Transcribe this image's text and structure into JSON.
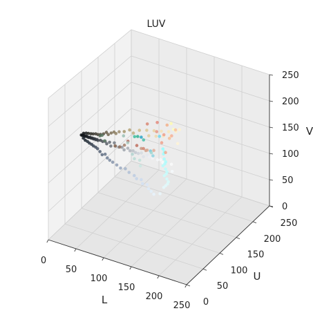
{
  "chart_data": {
    "type": "scatter",
    "title": "LUV",
    "xlabel": "L",
    "ylabel": "U",
    "zlabel": "V",
    "xlim": [
      0,
      250
    ],
    "ylim": [
      0,
      250
    ],
    "zlim": [
      0,
      250
    ],
    "x_ticks": [
      "0",
      "50",
      "100",
      "150",
      "200",
      "250"
    ],
    "y_ticks": [
      "0",
      "50",
      "100",
      "150",
      "200",
      "250"
    ],
    "z_ticks": [
      "0",
      "50",
      "100",
      "150",
      "200",
      "250"
    ],
    "grid": true,
    "point_color_meaning": "RGB color of each pixel",
    "points": [
      {
        "x": 2,
        "y": 96,
        "z": 136,
        "color": "#0b0f12"
      },
      {
        "x": 4,
        "y": 96,
        "z": 136,
        "color": "#0d1114"
      },
      {
        "x": 6,
        "y": 96,
        "z": 137,
        "color": "#10141a"
      },
      {
        "x": 8,
        "y": 96,
        "z": 136,
        "color": "#13171c"
      },
      {
        "x": 10,
        "y": 96,
        "z": 136,
        "color": "#161a20"
      },
      {
        "x": 12,
        "y": 96,
        "z": 137,
        "color": "#191d22"
      },
      {
        "x": 14,
        "y": 96,
        "z": 136,
        "color": "#1c2026"
      },
      {
        "x": 16,
        "y": 96,
        "z": 136,
        "color": "#1f242a"
      },
      {
        "x": 18,
        "y": 96,
        "z": 137,
        "color": "#22272e"
      },
      {
        "x": 20,
        "y": 96,
        "z": 136,
        "color": "#262b32"
      },
      {
        "x": 22,
        "y": 96,
        "z": 137,
        "color": "#2a2f36"
      },
      {
        "x": 24,
        "y": 96,
        "z": 136,
        "color": "#2d323a"
      },
      {
        "x": 26,
        "y": 96,
        "z": 137,
        "color": "#31363e"
      },
      {
        "x": 28,
        "y": 96,
        "z": 136,
        "color": "#353a42"
      },
      {
        "x": 30,
        "y": 96,
        "z": 137,
        "color": "#393e46"
      },
      {
        "x": 32,
        "y": 96,
        "z": 136,
        "color": "#3c424a"
      },
      {
        "x": 5,
        "y": 98,
        "z": 139,
        "color": "#121518"
      },
      {
        "x": 9,
        "y": 99,
        "z": 140,
        "color": "#1a1d1e"
      },
      {
        "x": 13,
        "y": 99,
        "z": 141,
        "color": "#22241f"
      },
      {
        "x": 17,
        "y": 100,
        "z": 141,
        "color": "#2b2b24"
      },
      {
        "x": 21,
        "y": 100,
        "z": 142,
        "color": "#34322a"
      },
      {
        "x": 25,
        "y": 101,
        "z": 143,
        "color": "#3d3a31"
      },
      {
        "x": 29,
        "y": 101,
        "z": 143,
        "color": "#474237"
      },
      {
        "x": 33,
        "y": 102,
        "z": 144,
        "color": "#504a3e"
      },
      {
        "x": 7,
        "y": 94,
        "z": 133,
        "color": "#121a22"
      },
      {
        "x": 11,
        "y": 93,
        "z": 131,
        "color": "#19222c"
      },
      {
        "x": 15,
        "y": 93,
        "z": 130,
        "color": "#212b36"
      },
      {
        "x": 19,
        "y": 92,
        "z": 129,
        "color": "#293340"
      },
      {
        "x": 23,
        "y": 92,
        "z": 128,
        "color": "#313c4a"
      },
      {
        "x": 27,
        "y": 91,
        "z": 127,
        "color": "#3a4554"
      },
      {
        "x": 31,
        "y": 91,
        "z": 126,
        "color": "#424e5e"
      },
      {
        "x": 35,
        "y": 90,
        "z": 125,
        "color": "#4b5768"
      },
      {
        "x": 36,
        "y": 97,
        "z": 137,
        "color": "#41464e"
      },
      {
        "x": 40,
        "y": 97,
        "z": 136,
        "color": "#4a4f57"
      },
      {
        "x": 44,
        "y": 98,
        "z": 137,
        "color": "#535860"
      },
      {
        "x": 48,
        "y": 96,
        "z": 135,
        "color": "#5b6069"
      },
      {
        "x": 52,
        "y": 98,
        "z": 138,
        "color": "#646a73"
      },
      {
        "x": 56,
        "y": 95,
        "z": 134,
        "color": "#6d737c"
      },
      {
        "x": 60,
        "y": 99,
        "z": 139,
        "color": "#767b84"
      },
      {
        "x": 64,
        "y": 96,
        "z": 136,
        "color": "#80858e"
      },
      {
        "x": 38,
        "y": 103,
        "z": 146,
        "color": "#5a5142"
      },
      {
        "x": 42,
        "y": 105,
        "z": 149,
        "color": "#665b48"
      },
      {
        "x": 46,
        "y": 104,
        "z": 147,
        "color": "#70644f"
      },
      {
        "x": 50,
        "y": 106,
        "z": 150,
        "color": "#7b6e56"
      },
      {
        "x": 54,
        "y": 108,
        "z": 152,
        "color": "#86785d"
      },
      {
        "x": 58,
        "y": 107,
        "z": 151,
        "color": "#908265"
      },
      {
        "x": 62,
        "y": 110,
        "z": 154,
        "color": "#9b8c6d"
      },
      {
        "x": 40,
        "y": 89,
        "z": 122,
        "color": "#536074"
      },
      {
        "x": 45,
        "y": 87,
        "z": 119,
        "color": "#5d6b80"
      },
      {
        "x": 50,
        "y": 88,
        "z": 121,
        "color": "#67758a"
      },
      {
        "x": 55,
        "y": 86,
        "z": 117,
        "color": "#718096"
      },
      {
        "x": 60,
        "y": 85,
        "z": 115,
        "color": "#7b8aa0"
      },
      {
        "x": 66,
        "y": 84,
        "z": 114,
        "color": "#8694aa"
      },
      {
        "x": 70,
        "y": 96,
        "z": 136,
        "color": "#8c9199"
      },
      {
        "x": 75,
        "y": 97,
        "z": 137,
        "color": "#959aa2"
      },
      {
        "x": 80,
        "y": 95,
        "z": 135,
        "color": "#9ea3ab"
      },
      {
        "x": 85,
        "y": 98,
        "z": 138,
        "color": "#a8adb5"
      },
      {
        "x": 90,
        "y": 96,
        "z": 136,
        "color": "#b1b6be"
      },
      {
        "x": 95,
        "y": 97,
        "z": 137,
        "color": "#babfc7"
      },
      {
        "x": 100,
        "y": 96,
        "z": 136,
        "color": "#c3c8d0"
      },
      {
        "x": 70,
        "y": 112,
        "z": 156,
        "color": "#a7976f"
      },
      {
        "x": 78,
        "y": 115,
        "z": 160,
        "color": "#b5a378"
      },
      {
        "x": 86,
        "y": 113,
        "z": 158,
        "color": "#c2af82"
      },
      {
        "x": 94,
        "y": 118,
        "z": 163,
        "color": "#cfbb8b"
      },
      {
        "x": 74,
        "y": 83,
        "z": 112,
        "color": "#8f9db4"
      },
      {
        "x": 82,
        "y": 81,
        "z": 110,
        "color": "#9aa9c0"
      },
      {
        "x": 90,
        "y": 82,
        "z": 111,
        "color": "#a5b4ca"
      },
      {
        "x": 98,
        "y": 80,
        "z": 108,
        "color": "#b0bfd6"
      },
      {
        "x": 50,
        "y": 118,
        "z": 120,
        "color": "#8c6b55"
      },
      {
        "x": 56,
        "y": 122,
        "z": 118,
        "color": "#977561"
      },
      {
        "x": 62,
        "y": 126,
        "z": 121,
        "color": "#a27f6b"
      },
      {
        "x": 48,
        "y": 76,
        "z": 160,
        "color": "#4f6a55"
      },
      {
        "x": 54,
        "y": 72,
        "z": 165,
        "color": "#587560"
      },
      {
        "x": 60,
        "y": 70,
        "z": 158,
        "color": "#627f69"
      },
      {
        "x": 105,
        "y": 96,
        "z": 136,
        "color": "#ccd1d9"
      },
      {
        "x": 110,
        "y": 97,
        "z": 138,
        "color": "#d5dae1"
      },
      {
        "x": 115,
        "y": 95,
        "z": 134,
        "color": "#dde2e9"
      },
      {
        "x": 120,
        "y": 98,
        "z": 137,
        "color": "#e5e9ef"
      },
      {
        "x": 125,
        "y": 96,
        "z": 136,
        "color": "#eceff4"
      },
      {
        "x": 130,
        "y": 97,
        "z": 135,
        "color": "#f2f4f7"
      },
      {
        "x": 106,
        "y": 120,
        "z": 166,
        "color": "#dcc794"
      },
      {
        "x": 112,
        "y": 116,
        "z": 160,
        "color": "#e2cd9d"
      },
      {
        "x": 118,
        "y": 122,
        "z": 168,
        "color": "#e9d4a6"
      },
      {
        "x": 124,
        "y": 118,
        "z": 162,
        "color": "#efdaae"
      },
      {
        "x": 130,
        "y": 124,
        "z": 170,
        "color": "#f5e1b7"
      },
      {
        "x": 136,
        "y": 120,
        "z": 165,
        "color": "#fae6bf"
      },
      {
        "x": 108,
        "y": 79,
        "z": 106,
        "color": "#bccbe1"
      },
      {
        "x": 114,
        "y": 76,
        "z": 104,
        "color": "#c4d3e8"
      },
      {
        "x": 120,
        "y": 80,
        "z": 102,
        "color": "#cbd9ed"
      },
      {
        "x": 126,
        "y": 74,
        "z": 100,
        "color": "#d1dff2"
      },
      {
        "x": 132,
        "y": 78,
        "z": 98,
        "color": "#d8e5f6"
      },
      {
        "x": 110,
        "y": 70,
        "z": 150,
        "color": "#b2d4d0"
      },
      {
        "x": 116,
        "y": 66,
        "z": 146,
        "color": "#badad5"
      },
      {
        "x": 122,
        "y": 72,
        "z": 142,
        "color": "#c2e0db"
      },
      {
        "x": 128,
        "y": 64,
        "z": 138,
        "color": "#cae6e1"
      },
      {
        "x": 90,
        "y": 130,
        "z": 122,
        "color": "#c89a84"
      },
      {
        "x": 96,
        "y": 134,
        "z": 118,
        "color": "#d0a08b"
      },
      {
        "x": 102,
        "y": 128,
        "z": 124,
        "color": "#d8a792"
      },
      {
        "x": 108,
        "y": 138,
        "z": 120,
        "color": "#e0ae99"
      },
      {
        "x": 140,
        "y": 96,
        "z": 136,
        "color": "#f6f7f9"
      },
      {
        "x": 145,
        "y": 97,
        "z": 137,
        "color": "#f8f9fa"
      },
      {
        "x": 150,
        "y": 95,
        "z": 135,
        "color": "#f9fafb"
      },
      {
        "x": 142,
        "y": 126,
        "z": 172,
        "color": "#fbe7b9"
      },
      {
        "x": 148,
        "y": 122,
        "z": 168,
        "color": "#fdebc2"
      },
      {
        "x": 154,
        "y": 128,
        "z": 175,
        "color": "#fff0ca"
      },
      {
        "x": 138,
        "y": 72,
        "z": 96,
        "color": "#dceaf8"
      },
      {
        "x": 144,
        "y": 70,
        "z": 94,
        "color": "#e1eef9"
      },
      {
        "x": 150,
        "y": 68,
        "z": 92,
        "color": "#e6f2fb"
      },
      {
        "x": 160,
        "y": 70,
        "z": 95,
        "color": "#e9f6fc"
      },
      {
        "x": 168,
        "y": 68,
        "z": 110,
        "color": "#e4f8fb"
      },
      {
        "x": 176,
        "y": 66,
        "z": 120,
        "color": "#ddf9fa"
      },
      {
        "x": 176,
        "y": 64,
        "z": 130,
        "color": "#d2fafa"
      },
      {
        "x": 176,
        "y": 62,
        "z": 140,
        "color": "#c8fbfb"
      },
      {
        "x": 176,
        "y": 60,
        "z": 150,
        "color": "#bdfcfc"
      },
      {
        "x": 176,
        "y": 58,
        "z": 160,
        "color": "#b2fcfd"
      },
      {
        "x": 176,
        "y": 56,
        "z": 170,
        "color": "#a8fdfd"
      },
      {
        "x": 176,
        "y": 54,
        "z": 180,
        "color": "#9efdfe"
      },
      {
        "x": 176,
        "y": 52,
        "z": 190,
        "color": "#94fefe"
      },
      {
        "x": 178,
        "y": 65,
        "z": 125,
        "color": "#d7fafa"
      },
      {
        "x": 178,
        "y": 61,
        "z": 145,
        "color": "#c2fbfb"
      },
      {
        "x": 178,
        "y": 57,
        "z": 165,
        "color": "#adfdfd"
      },
      {
        "x": 178,
        "y": 53,
        "z": 185,
        "color": "#99fefe"
      },
      {
        "x": 172,
        "y": 67,
        "z": 115,
        "color": "#e0f8fb"
      },
      {
        "x": 172,
        "y": 63,
        "z": 135,
        "color": "#cdfafa"
      },
      {
        "x": 172,
        "y": 59,
        "z": 155,
        "color": "#b8fcfc"
      },
      {
        "x": 165,
        "y": 96,
        "z": 136,
        "color": "#fafbfc"
      },
      {
        "x": 170,
        "y": 90,
        "z": 128,
        "color": "#f4f9fc"
      },
      {
        "x": 162,
        "y": 120,
        "z": 160,
        "color": "#fff4d6"
      },
      {
        "x": 158,
        "y": 132,
        "z": 178,
        "color": "#fff2cc"
      },
      {
        "x": 156,
        "y": 110,
        "z": 200,
        "color": "#fffbb0"
      },
      {
        "x": 164,
        "y": 104,
        "z": 195,
        "color": "#fffdc0"
      },
      {
        "x": 115,
        "y": 150,
        "z": 130,
        "color": "#f0a18c"
      },
      {
        "x": 125,
        "y": 145,
        "z": 118,
        "color": "#f2aa92"
      },
      {
        "x": 100,
        "y": 160,
        "z": 140,
        "color": "#e79886"
      },
      {
        "x": 95,
        "y": 170,
        "z": 150,
        "color": "#e48a7c"
      },
      {
        "x": 80,
        "y": 165,
        "z": 145,
        "color": "#d98876"
      },
      {
        "x": 110,
        "y": 165,
        "z": 135,
        "color": "#eea08b"
      },
      {
        "x": 120,
        "y": 158,
        "z": 160,
        "color": "#f3b28c"
      },
      {
        "x": 135,
        "y": 140,
        "z": 150,
        "color": "#f6be98"
      },
      {
        "x": 130,
        "y": 155,
        "z": 145,
        "color": "#f4b09a"
      },
      {
        "x": 140,
        "y": 150,
        "z": 162,
        "color": "#f8c2a0"
      },
      {
        "x": 70,
        "y": 150,
        "z": 110,
        "color": "#c07060"
      },
      {
        "x": 85,
        "y": 145,
        "z": 112,
        "color": "#d08470"
      },
      {
        "x": 60,
        "y": 140,
        "z": 120,
        "color": "#b06a5e"
      },
      {
        "x": 120,
        "y": 60,
        "z": 190,
        "color": "#3fbfa0"
      },
      {
        "x": 128,
        "y": 56,
        "z": 195,
        "color": "#2fb494"
      },
      {
        "x": 135,
        "y": 62,
        "z": 188,
        "color": "#48c0a8"
      },
      {
        "x": 138,
        "y": 50,
        "z": 200,
        "color": "#2aa6c8"
      },
      {
        "x": 150,
        "y": 58,
        "z": 175,
        "color": "#80c8d8"
      },
      {
        "x": 158,
        "y": 52,
        "z": 172,
        "color": "#90d4e0"
      },
      {
        "x": 165,
        "y": 60,
        "z": 205,
        "color": "#6fd8f0"
      },
      {
        "x": 100,
        "y": 60,
        "z": 185,
        "color": "#9bbfb4"
      },
      {
        "x": 110,
        "y": 56,
        "z": 178,
        "color": "#a8cac0"
      },
      {
        "x": 148,
        "y": 64,
        "z": 168,
        "color": "#a0d8d4"
      }
    ]
  }
}
